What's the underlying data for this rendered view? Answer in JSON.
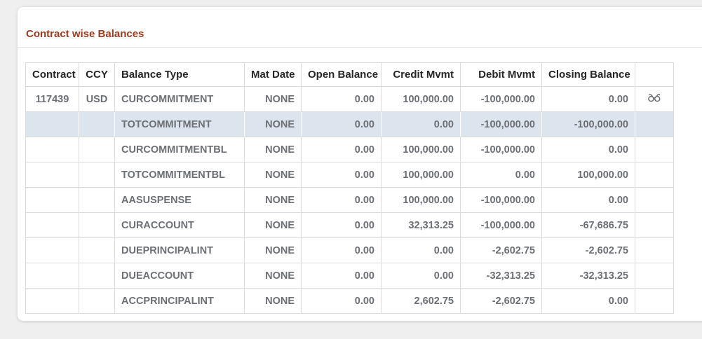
{
  "card": {
    "title": "Contract wise Balances"
  },
  "colors": {
    "title": "#9c3b1c",
    "header_text": "#262626",
    "cell_text": "#6c6f74",
    "grid_border": "#d9dadb",
    "highlight_row_bg": "#dce5ed",
    "card_bg": "#ffffff",
    "page_bg": "#efefef"
  },
  "icons": {
    "view_details": "eyeglasses-icon"
  },
  "table": {
    "columns": [
      {
        "key": "contract",
        "label": "Contract",
        "align": "center"
      },
      {
        "key": "ccy",
        "label": "CCY",
        "align": "center"
      },
      {
        "key": "balance_type",
        "label": "Balance Type",
        "align": "left"
      },
      {
        "key": "mat_date",
        "label": "Mat Date",
        "align": "right"
      },
      {
        "key": "open_balance",
        "label": "Open Balance",
        "align": "right"
      },
      {
        "key": "credit_mvmt",
        "label": "Credit Mvmt",
        "align": "right"
      },
      {
        "key": "debit_mvmt",
        "label": "Debit Mvmt",
        "align": "right"
      },
      {
        "key": "closing_balance",
        "label": "Closing Balance",
        "align": "right"
      },
      {
        "key": "actions",
        "label": "",
        "align": "center"
      }
    ],
    "rows": [
      {
        "contract": "117439",
        "ccy": "USD",
        "balance_type": "CURCOMMITMENT",
        "mat_date": "NONE",
        "open_balance": "0.00",
        "credit_mvmt": "100,000.00",
        "debit_mvmt": "-100,000.00",
        "closing_balance": "0.00",
        "has_view_icon": true,
        "highlighted": false
      },
      {
        "contract": "",
        "ccy": "",
        "balance_type": "TOTCOMMITMENT",
        "mat_date": "NONE",
        "open_balance": "0.00",
        "credit_mvmt": "0.00",
        "debit_mvmt": "-100,000.00",
        "closing_balance": "-100,000.00",
        "has_view_icon": false,
        "highlighted": true
      },
      {
        "contract": "",
        "ccy": "",
        "balance_type": "CURCOMMITMENTBL",
        "mat_date": "NONE",
        "open_balance": "0.00",
        "credit_mvmt": "100,000.00",
        "debit_mvmt": "-100,000.00",
        "closing_balance": "0.00",
        "has_view_icon": false,
        "highlighted": false
      },
      {
        "contract": "",
        "ccy": "",
        "balance_type": "TOTCOMMITMENTBL",
        "mat_date": "NONE",
        "open_balance": "0.00",
        "credit_mvmt": "100,000.00",
        "debit_mvmt": "0.00",
        "closing_balance": "100,000.00",
        "has_view_icon": false,
        "highlighted": false
      },
      {
        "contract": "",
        "ccy": "",
        "balance_type": "AASUSPENSE",
        "mat_date": "NONE",
        "open_balance": "0.00",
        "credit_mvmt": "100,000.00",
        "debit_mvmt": "-100,000.00",
        "closing_balance": "0.00",
        "has_view_icon": false,
        "highlighted": false
      },
      {
        "contract": "",
        "ccy": "",
        "balance_type": "CURACCOUNT",
        "mat_date": "NONE",
        "open_balance": "0.00",
        "credit_mvmt": "32,313.25",
        "debit_mvmt": "-100,000.00",
        "closing_balance": "-67,686.75",
        "has_view_icon": false,
        "highlighted": false
      },
      {
        "contract": "",
        "ccy": "",
        "balance_type": "DUEPRINCIPALINT",
        "mat_date": "NONE",
        "open_balance": "0.00",
        "credit_mvmt": "0.00",
        "debit_mvmt": "-2,602.75",
        "closing_balance": "-2,602.75",
        "has_view_icon": false,
        "highlighted": false
      },
      {
        "contract": "",
        "ccy": "",
        "balance_type": "DUEACCOUNT",
        "mat_date": "NONE",
        "open_balance": "0.00",
        "credit_mvmt": "0.00",
        "debit_mvmt": "-32,313.25",
        "closing_balance": "-32,313.25",
        "has_view_icon": false,
        "highlighted": false
      },
      {
        "contract": "",
        "ccy": "",
        "balance_type": "ACCPRINCIPALINT",
        "mat_date": "NONE",
        "open_balance": "0.00",
        "credit_mvmt": "2,602.75",
        "debit_mvmt": "-2,602.75",
        "closing_balance": "0.00",
        "has_view_icon": false,
        "highlighted": false
      }
    ]
  }
}
